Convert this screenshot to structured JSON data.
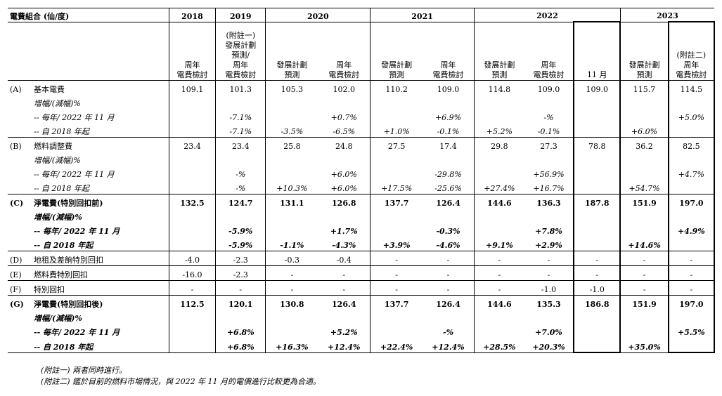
{
  "header": {
    "title": "電費組合 (仙/度)",
    "years": [
      "2018",
      "2019",
      "2020",
      "2021",
      "2022",
      "2023"
    ],
    "columns": [
      "周年\n電費檢討",
      "(附註一)\n發展計劃\n預測/\n周年\n電費檢討",
      "發展計劃\n預測",
      "周年\n電費檢討",
      "發展計劃\n預測",
      "周年\n電費檢討",
      "發展計劃\n預測",
      "周年\n電費檢討",
      "11 月",
      "發展計劃\n預測",
      "(附註二)\n周年\n電費檢討"
    ]
  },
  "rows": [
    {
      "mark": "(A)",
      "label": "基本電費",
      "bold": false,
      "pct": false,
      "cells": [
        "109.1",
        "101.3",
        "105.3",
        "102.0",
        "110.2",
        "109.0",
        "114.8",
        "109.0",
        "109.0",
        "115.7",
        "114.5"
      ]
    },
    {
      "mark": "",
      "label": "增幅/(減幅)%",
      "bold": false,
      "pct": true,
      "cells": [
        "",
        "",
        "",
        "",
        "",
        "",
        "",
        "",
        "",
        "",
        ""
      ]
    },
    {
      "mark": "",
      "label": "-- 每年/ 2022 年 11 月",
      "bold": false,
      "pct": true,
      "cells": [
        "",
        "-7.1%",
        "",
        "+0.7%",
        "",
        "+6.9%",
        "",
        "-%",
        "",
        "",
        "+5.0%"
      ]
    },
    {
      "mark": "",
      "label": "-- 自 2018 年起",
      "bold": false,
      "pct": true,
      "end": true,
      "cells": [
        "",
        "-7.1%",
        "-3.5%",
        "-6.5%",
        "+1.0%",
        "-0.1%",
        "+5.2%",
        "-0.1%",
        "",
        "+6.0%",
        ""
      ]
    },
    {
      "mark": "(B)",
      "label": "燃料調整費",
      "bold": false,
      "pct": false,
      "cells": [
        "23.4",
        "23.4",
        "25.8",
        "24.8",
        "27.5",
        "17.4",
        "29.8",
        "27.3",
        "78.8",
        "36.2",
        "82.5"
      ]
    },
    {
      "mark": "",
      "label": "增幅/(減幅)%",
      "bold": false,
      "pct": true,
      "cells": [
        "",
        "",
        "",
        "",
        "",
        "",
        "",
        "",
        "",
        "",
        ""
      ]
    },
    {
      "mark": "",
      "label": "-- 每年/ 2022 年 11 月",
      "bold": false,
      "pct": true,
      "cells": [
        "",
        "-%",
        "",
        "+6.0%",
        "",
        "-29.8%",
        "",
        "+56.9%",
        "",
        "",
        "+4.7%"
      ]
    },
    {
      "mark": "",
      "label": "-- 自 2018 年起",
      "bold": false,
      "pct": true,
      "end": true,
      "cells": [
        "",
        "-%",
        "+10.3%",
        "+6.0%",
        "+17.5%",
        "-25.6%",
        "+27.4%",
        "+16.7%",
        "",
        "+54.7%",
        ""
      ]
    },
    {
      "mark": "(C)",
      "label": "淨電費(特別回扣前)",
      "bold": true,
      "pct": false,
      "cells": [
        "132.5",
        "124.7",
        "131.1",
        "126.8",
        "137.7",
        "126.4",
        "144.6",
        "136.3",
        "187.8",
        "151.9",
        "197.0"
      ]
    },
    {
      "mark": "",
      "label": "增幅/(減幅)%",
      "bold": true,
      "pct": true,
      "cells": [
        "",
        "",
        "",
        "",
        "",
        "",
        "",
        "",
        "",
        "",
        ""
      ]
    },
    {
      "mark": "",
      "label": "-- 每年/ 2022 年 11 月",
      "bold": true,
      "pct": true,
      "cells": [
        "",
        "-5.9%",
        "",
        "+1.7%",
        "",
        "-0.3%",
        "",
        "+7.8%",
        "",
        "",
        "+4.9%"
      ]
    },
    {
      "mark": "",
      "label": "-- 自 2018 年起",
      "bold": true,
      "pct": true,
      "end": true,
      "cells": [
        "",
        "-5.9%",
        "-1.1%",
        "-4.3%",
        "+3.9%",
        "-4.6%",
        "+9.1%",
        "+2.9%",
        "",
        "+14.6%",
        ""
      ]
    },
    {
      "mark": "(D)",
      "label": "地租及差餉特別回扣",
      "bold": false,
      "pct": false,
      "end": true,
      "cells": [
        "-4.0",
        "-2.3",
        "-0.3",
        "-0.4",
        "-",
        "-",
        "-",
        "-",
        "-",
        "-",
        "-"
      ]
    },
    {
      "mark": "(E)",
      "label": "燃料費特別回扣",
      "bold": false,
      "pct": false,
      "end": true,
      "cells": [
        "-16.0",
        "-2.3",
        "-",
        "-",
        "-",
        "-",
        "-",
        "-",
        "-",
        "-",
        "-"
      ]
    },
    {
      "mark": "(F)",
      "label": "特別回扣",
      "bold": false,
      "pct": false,
      "end": true,
      "cells": [
        "-",
        "-",
        "-",
        "-",
        "-",
        "-",
        "-",
        "-1.0",
        "-1.0",
        "-",
        "-"
      ]
    },
    {
      "mark": "(G)",
      "label": "淨電費(特別回扣後)",
      "bold": true,
      "pct": false,
      "cells": [
        "112.5",
        "120.1",
        "130.8",
        "126.4",
        "137.7",
        "126.4",
        "144.6",
        "135.3",
        "186.8",
        "151.9",
        "197.0"
      ]
    },
    {
      "mark": "",
      "label": "增幅/(減幅)%",
      "bold": true,
      "pct": true,
      "cells": [
        "",
        "",
        "",
        "",
        "",
        "",
        "",
        "",
        "",
        "",
        ""
      ]
    },
    {
      "mark": "",
      "label": "-- 每年/ 2022 年 11 月",
      "bold": true,
      "pct": true,
      "cells": [
        "",
        "+6.8%",
        "",
        "+5.2%",
        "",
        "-%",
        "",
        "+7.0%",
        "",
        "",
        "+5.5%"
      ]
    },
    {
      "mark": "",
      "label": "-- 自 2018 年起",
      "bold": true,
      "pct": true,
      "end": true,
      "cells": [
        "",
        "+6.8%",
        "+16.3%",
        "+12.4%",
        "+22.4%",
        "+12.4%",
        "+28.5%",
        "+20.3%",
        "",
        "+35.0%",
        ""
      ]
    }
  ],
  "notes": [
    "(附註一) 兩者同時進行。",
    "(附註二) 鑑於目前的燃料市場情況，與 2022 年 11 月的電價進行比較更為合適。"
  ]
}
